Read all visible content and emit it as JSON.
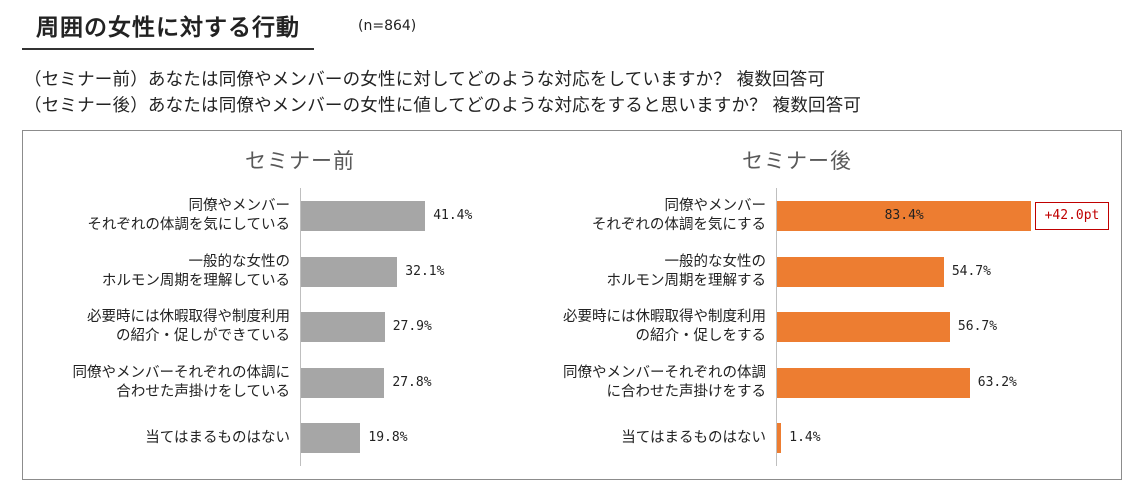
{
  "header": {
    "title": "周囲の女性に対する行動",
    "n": "(n=864)"
  },
  "questions": {
    "before": "（セミナー前）あなたは同僚やメンバーの女性に対してどのような対応をしていますか？ 複数回答可",
    "after": "（セミナー後）あなたは同僚やメンバーの女性に値してどのような対応をすると思いますか？ 複数回答可"
  },
  "annotation": {
    "diff": "+42.0pt"
  },
  "colors": {
    "before_bar": "#a6a6a6",
    "after_bar": "#ed7d31",
    "diff": "#c00000"
  },
  "chart_data": [
    {
      "type": "bar",
      "orientation": "horizontal",
      "title": "セミナー前",
      "categories": [
        "同僚やメンバー\nそれぞれの体調を気にしている",
        "一般的な女性の\nホルモン周期を理解している",
        "必要時には休暇取得や制度利用\nの紹介・促しができている",
        "同僚やメンバーそれぞれの体調に\n合わせた声掛けをしている",
        "当てはまるものはない"
      ],
      "values": [
        41.4,
        32.1,
        27.9,
        27.8,
        19.8
      ],
      "value_labels": [
        "41.4%",
        "32.1%",
        "27.9%",
        "27.8%",
        "19.8%"
      ],
      "unit": "%",
      "xlim": [
        0,
        90
      ]
    },
    {
      "type": "bar",
      "orientation": "horizontal",
      "title": "セミナー後",
      "categories": [
        "同僚やメンバー\nそれぞれの体調を気にする",
        "一般的な女性の\nホルモン周期を理解する",
        "必要時には休暇取得や制度利用\nの紹介・促しをする",
        "同僚やメンバーそれぞれの体調\nに合わせた声掛けをする",
        "当てはまるものはない"
      ],
      "values": [
        83.4,
        54.7,
        56.7,
        63.2,
        1.4
      ],
      "value_labels": [
        "83.4%",
        "54.7%",
        "56.7%",
        "63.2%",
        "1.4%"
      ],
      "unit": "%",
      "xlim": [
        0,
        90
      ]
    }
  ]
}
